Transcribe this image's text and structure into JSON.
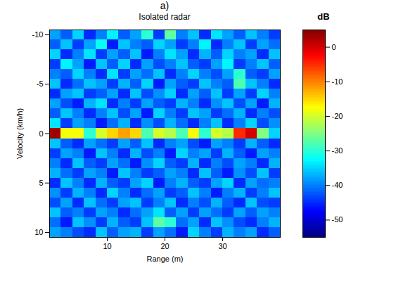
{
  "chart_data": {
    "type": "heatmap",
    "panel_label": "a)",
    "title": "Isolated radar",
    "x_label": "Range (m)",
    "y_label": "Velocity (km/h)",
    "xlim": [
      0,
      40
    ],
    "xticks": [
      10,
      20,
      30
    ],
    "ylim": [
      -10.5,
      10.5
    ],
    "yticks": [
      -10,
      -5,
      0,
      5,
      10
    ],
    "heatmap": {
      "x": [
        1,
        3,
        5,
        7,
        9,
        11,
        13,
        15,
        17,
        19,
        21,
        23,
        25,
        27,
        29,
        31,
        33,
        35,
        37,
        39
      ],
      "y": [
        -10,
        -9,
        -8,
        -7,
        -6,
        -5,
        -4,
        -3,
        -2,
        -1,
        0,
        1,
        2,
        3,
        4,
        5,
        6,
        7,
        8,
        9,
        10
      ],
      "values": [
        [
          -38,
          -42,
          -35,
          -45,
          -40,
          -33,
          -42,
          -38,
          -30,
          -44,
          -27,
          -40,
          -36,
          -45,
          -34,
          -38,
          -42,
          -36,
          -40,
          -44
        ],
        [
          -42,
          -36,
          -44,
          -38,
          -32,
          -46,
          -36,
          -40,
          -42,
          -35,
          -38,
          -44,
          -40,
          -33,
          -45,
          -40,
          -36,
          -44,
          -38,
          -41
        ],
        [
          -35,
          -45,
          -40,
          -34,
          -44,
          -38,
          -42,
          -36,
          -46,
          -40,
          -34,
          -38,
          -45,
          -37,
          -42,
          -35,
          -40,
          -38,
          -45,
          -36
        ],
        [
          -44,
          -33,
          -38,
          -46,
          -36,
          -42,
          -35,
          -45,
          -38,
          -43,
          -40,
          -36,
          -42,
          -44,
          -38,
          -33,
          -44,
          -40,
          -36,
          -42
        ],
        [
          -40,
          -42,
          -35,
          -40,
          -45,
          -34,
          -44,
          -38,
          -41,
          -36,
          -45,
          -40,
          -35,
          -40,
          -43,
          -38,
          -30,
          -42,
          -44,
          -38
        ],
        [
          -36,
          -45,
          -41,
          -36,
          -38,
          -44,
          -37,
          -42,
          -35,
          -46,
          -38,
          -42,
          -44,
          -36,
          -40,
          -42,
          -28,
          -36,
          -40,
          -45
        ],
        [
          -45,
          -38,
          -36,
          -44,
          -42,
          -38,
          -45,
          -36,
          -43,
          -39,
          -35,
          -45,
          -38,
          -42,
          -36,
          -44,
          -38,
          -44,
          -35,
          -40
        ],
        [
          -38,
          -43,
          -46,
          -37,
          -34,
          -45,
          -40,
          -44,
          -38,
          -42,
          -44,
          -37,
          -40,
          -45,
          -39,
          -36,
          -43,
          -38,
          -46,
          -37
        ],
        [
          -42,
          -36,
          -40,
          -45,
          -40,
          -36,
          -43,
          -38,
          -46,
          -35,
          -40,
          -44,
          -36,
          -38,
          -44,
          -41,
          -37,
          -45,
          -40,
          -43
        ],
        [
          -34,
          -44,
          -38,
          -40,
          -46,
          -41,
          -37,
          -45,
          -39,
          -43,
          -37,
          -41,
          -45,
          -40,
          -36,
          -45,
          -40,
          -35,
          -43,
          -39
        ],
        [
          3,
          -18,
          -18,
          -30,
          -20,
          -15,
          -12,
          -15,
          -28,
          -20,
          -22,
          -28,
          -18,
          -30,
          -20,
          -22,
          -5,
          0,
          -25,
          -35
        ],
        [
          -36,
          -42,
          -45,
          -38,
          -41,
          -44,
          -38,
          -42,
          -36,
          -45,
          -40,
          -38,
          -43,
          -46,
          -38,
          -40,
          -44,
          -37,
          -42,
          -45
        ],
        [
          -44,
          -38,
          -40,
          -46,
          -36,
          -40,
          -45,
          -37,
          -43,
          -40,
          -46,
          -35,
          -40,
          -38,
          -44,
          -37,
          -42,
          -46,
          -38,
          -40
        ],
        [
          -40,
          -45,
          -36,
          -42,
          -44,
          -38,
          -41,
          -46,
          -39,
          -35,
          -42,
          -44,
          -37,
          -45,
          -40,
          -43,
          -38,
          -40,
          -45,
          -37
        ],
        [
          -37,
          -41,
          -44,
          -38,
          -40,
          -46,
          -36,
          -40,
          -44,
          -42,
          -38,
          -40,
          -45,
          -36,
          -42,
          -46,
          -39,
          -43,
          -36,
          -44
        ],
        [
          -45,
          -36,
          -40,
          -45,
          -37,
          -42,
          -44,
          -38,
          -35,
          -46,
          -40,
          -37,
          -42,
          -44,
          -38,
          -35,
          -45,
          -38,
          -41,
          -40
        ],
        [
          -39,
          -44,
          -37,
          -40,
          -45,
          -35,
          -40,
          -45,
          -41,
          -38,
          -44,
          -42,
          -36,
          -40,
          -46,
          -40,
          -37,
          -44,
          -40,
          -36
        ],
        [
          -43,
          -38,
          -45,
          -36,
          -41,
          -44,
          -38,
          -36,
          -44,
          -40,
          -36,
          -45,
          -40,
          -43,
          -37,
          -42,
          -45,
          -36,
          -43,
          -44
        ],
        [
          -36,
          -42,
          -40,
          -44,
          -38,
          -40,
          -45,
          -41,
          -38,
          -34,
          -42,
          -38,
          -44,
          -38,
          -41,
          -44,
          -38,
          -42,
          -38,
          -40
        ],
        [
          -41,
          -46,
          -36,
          -39,
          -44,
          -37,
          -42,
          -44,
          -36,
          -27,
          -30,
          -41,
          -38,
          -45,
          -36,
          -39,
          -43,
          -45,
          -40,
          -37
        ],
        [
          -38,
          -40,
          -43,
          -45,
          -36,
          -42,
          -38,
          -37,
          -44,
          -38,
          -41,
          -46,
          -35,
          -40,
          -44,
          -37,
          -40,
          -38,
          -45,
          -42
        ]
      ]
    },
    "colorbar": {
      "title": "dB",
      "lim": [
        -55,
        5
      ],
      "ticks": [
        0,
        -10,
        -20,
        -30,
        -40,
        -50
      ]
    }
  }
}
